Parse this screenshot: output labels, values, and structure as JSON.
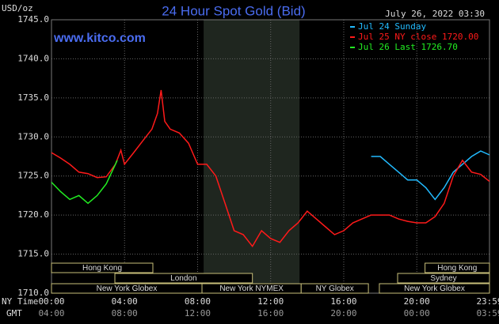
{
  "chart_data": {
    "type": "line",
    "title": "24 Hour Spot Gold (Bid)",
    "site": "www.kitco.com",
    "timestamp": "July 26, 2022 03:30",
    "y_label": "USD/oz",
    "x_label": "NY Time",
    "x2_label": "GMT",
    "ylim": [
      1710,
      1745
    ],
    "yticks": [
      {
        "value": 1710,
        "label": "1710.0"
      },
      {
        "value": 1715,
        "label": "1715.0"
      },
      {
        "value": 1720,
        "label": "1720.0"
      },
      {
        "value": 1725,
        "label": "1725.0"
      },
      {
        "value": 1730,
        "label": "1730.0"
      },
      {
        "value": 1735,
        "label": "1735.0"
      },
      {
        "value": 1740,
        "label": "1740.0"
      },
      {
        "value": 1745,
        "label": "1745.0"
      }
    ],
    "xlim": [
      0,
      23.98
    ],
    "xticks": [
      {
        "value": 0,
        "label": "00:00"
      },
      {
        "value": 4,
        "label": "04:00"
      },
      {
        "value": 8,
        "label": "08:00"
      },
      {
        "value": 12,
        "label": "12:00"
      },
      {
        "value": 16,
        "label": "16:00"
      },
      {
        "value": 20,
        "label": "20:00"
      },
      {
        "value": 23.98,
        "label": "23:59"
      }
    ],
    "x2ticks": [
      {
        "value": 0,
        "label": "04:00"
      },
      {
        "value": 4,
        "label": "08:00"
      },
      {
        "value": 8,
        "label": "12:00"
      },
      {
        "value": 12,
        "label": "16:00"
      },
      {
        "value": 16,
        "label": "20:00"
      },
      {
        "value": 20,
        "label": "00:00"
      },
      {
        "value": 23.98,
        "label": "03:59"
      }
    ],
    "grid": true,
    "session_band": [
      8.33,
      13.58
    ],
    "sessions": [
      {
        "label": "Hong Kong",
        "start": 0,
        "end": 5.55,
        "row": 0
      },
      {
        "label": "London",
        "start": 3.47,
        "end": 11.0,
        "row": 1
      },
      {
        "label": "New York Globex",
        "start": 0,
        "end": 8.24,
        "row": 2
      },
      {
        "label": "New York NYMEX",
        "start": 8.24,
        "end": 13.67,
        "row": 2
      },
      {
        "label": "NY Globex",
        "start": 13.67,
        "end": 17.35,
        "row": 2
      },
      {
        "label": "Hong Kong",
        "start": 20.45,
        "end": 23.98,
        "row": 0
      },
      {
        "label": "Sydney",
        "start": 18.95,
        "end": 23.98,
        "row": 1
      },
      {
        "label": "New York Globex",
        "start": 17.95,
        "end": 23.98,
        "row": 2
      }
    ],
    "series": [
      {
        "name": "Jul 24 Sunday",
        "color": "#22bbff",
        "x": [
          17.5,
          18,
          18.5,
          19,
          19.5,
          20,
          20.5,
          21,
          21.5,
          22,
          22.5,
          23,
          23.5,
          23.98
        ],
        "values": [
          1727.5,
          1727.5,
          1726.5,
          1725.5,
          1724.5,
          1724.5,
          1723.5,
          1722,
          1723.5,
          1725.5,
          1726.5,
          1727.5,
          1728.2,
          1727.7
        ]
      },
      {
        "name": "Jul 25 NY close 1720.00",
        "color": "#ff1a1a",
        "x": [
          0,
          0.5,
          1,
          1.5,
          2,
          2.5,
          3,
          3.5,
          3.8,
          4,
          4.5,
          5,
          5.5,
          5.8,
          6,
          6.2,
          6.5,
          7,
          7.5,
          8,
          8.5,
          9,
          9.5,
          10,
          10.5,
          11,
          11.5,
          12,
          12.5,
          13,
          13.5,
          14,
          14.5,
          15,
          15.5,
          16,
          16.5,
          17,
          17.5,
          18,
          18.5,
          19,
          19.5,
          20,
          20.5,
          21,
          21.5,
          22,
          22.5,
          23,
          23.5,
          23.98
        ],
        "values": [
          1728,
          1727.3,
          1726.5,
          1725.5,
          1725.3,
          1724.8,
          1724.9,
          1726.5,
          1728.3,
          1726.5,
          1728,
          1729.5,
          1731,
          1733,
          1736,
          1732,
          1731,
          1730.5,
          1729.2,
          1726.5,
          1726.5,
          1725,
          1721.5,
          1718,
          1717.5,
          1716,
          1718,
          1717,
          1716.5,
          1718,
          1719,
          1720.5,
          1719.5,
          1718.5,
          1717.5,
          1718,
          1719,
          1719.5,
          1720,
          1720,
          1720,
          1719.5,
          1719.2,
          1719,
          1719,
          1719.8,
          1721.5,
          1725,
          1727,
          1725.5,
          1725.2,
          1724.3
        ]
      },
      {
        "name": "Jul 26 Last 1726.70",
        "color": "#22ee22",
        "x": [
          0,
          0.5,
          1,
          1.5,
          2,
          2.5,
          3,
          3.5,
          3.6
        ],
        "values": [
          1724.2,
          1723,
          1722,
          1722.5,
          1721.5,
          1722.5,
          1724,
          1726.5,
          1727
        ]
      }
    ]
  }
}
